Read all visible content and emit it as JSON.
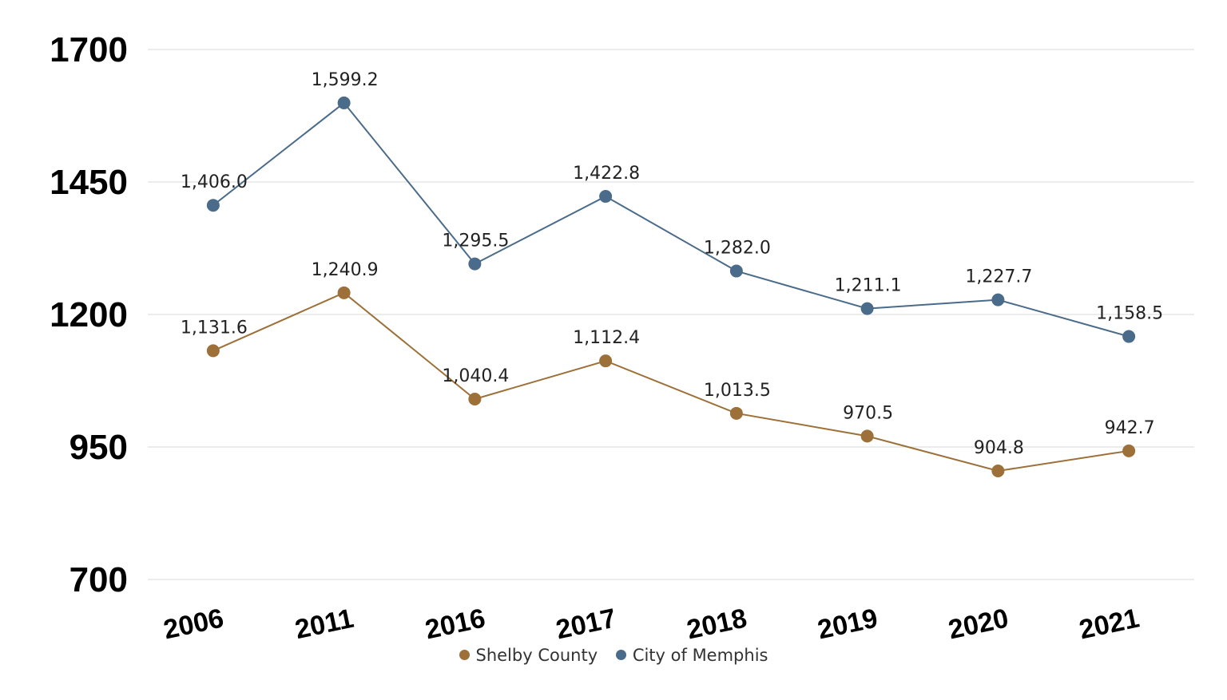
{
  "chart_data": {
    "type": "line",
    "categories": [
      "2006",
      "2011",
      "2016",
      "2017",
      "2018",
      "2019",
      "2020",
      "2021"
    ],
    "series": [
      {
        "name": "Shelby County",
        "color": "#9c7038",
        "values": [
          1131.6,
          1240.9,
          1040.4,
          1112.4,
          1013.5,
          970.5,
          904.8,
          942.7
        ],
        "labels": [
          "1,131.6",
          "1,240.9",
          "1,040.4",
          "1,112.4",
          "1,013.5",
          "970.5",
          "904.8",
          "942.7"
        ]
      },
      {
        "name": "City of Memphis",
        "color": "#4a6b8a",
        "values": [
          1406.0,
          1599.2,
          1295.5,
          1422.8,
          1282.0,
          1211.1,
          1227.7,
          1158.5
        ],
        "labels": [
          "1,406.0",
          "1,599.2",
          "1,295.5",
          "1,422.8",
          "1,282.0",
          "1,211.1",
          "1,227.7",
          "1,158.5"
        ]
      }
    ],
    "yticks": [
      "700",
      "950",
      "1200",
      "1450",
      "1700"
    ],
    "ylim": [
      700,
      1700
    ],
    "grid": true,
    "legend": "bottom",
    "title": "",
    "xlabel": "",
    "ylabel": ""
  }
}
